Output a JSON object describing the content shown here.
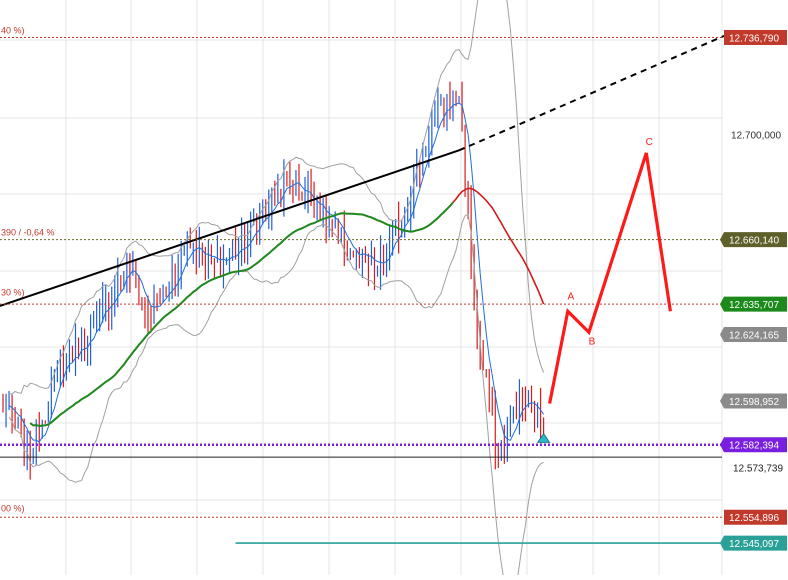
{
  "chart_data": {
    "type": "line",
    "title": "",
    "xlabel": "",
    "ylabel": "",
    "ylim": [
      12.533,
      12.751
    ],
    "grid": true,
    "colors": {
      "price_up": "#1f5fd8",
      "price_down": "#d81c1c",
      "bollinger": "#a0a0a0",
      "ma_fast": "#1e6fe0",
      "ma_mid": "#1f8a1f",
      "ma_slow": "#d31a1a",
      "trendline": "#000000",
      "projection": "#ff1a1a",
      "fib_line": "#c0392b",
      "purple_line": "#7a1fe0",
      "teal_line": "#2aa198"
    },
    "axis_ticks": [
      {
        "label": "12.700,000",
        "value": 12.7
      }
    ],
    "price_badges": [
      {
        "label": "12.736,790",
        "value": 12.73679,
        "style": "outline",
        "color": "#c0392b"
      },
      {
        "label": "12.660,140",
        "value": 12.66014,
        "style": "filled",
        "color": "#5f5f2a"
      },
      {
        "label": "12.635,707",
        "value": 12.635707,
        "style": "filled",
        "color": "#1b8a1b"
      },
      {
        "label": "12.624,165",
        "value": 12.624165,
        "style": "filled",
        "color": "#8a8a8a"
      },
      {
        "label": "12.598,952",
        "value": 12.598952,
        "style": "filled",
        "color": "#8a8a8a"
      },
      {
        "label": "12.582,394",
        "value": 12.582394,
        "style": "filled",
        "color": "#7a1fe0"
      },
      {
        "label": "12.573,739",
        "value": 12.573739,
        "style": "plain",
        "color": "#222222"
      },
      {
        "label": "12.554,896",
        "value": 12.554896,
        "style": "outline",
        "color": "#c0392b"
      },
      {
        "label": "12.545,097",
        "value": 12.545097,
        "style": "filled",
        "color": "#2aa198"
      }
    ],
    "fib_labels": [
      {
        "label": "40 %)",
        "value": 12.73679
      },
      {
        "label": "390 / -0,64 %",
        "value": 12.66014
      },
      {
        "label": "30 %)",
        "value": 12.6375
      },
      {
        "label": "00 %)",
        "value": 12.5555
      }
    ],
    "horizontal_levels": [
      {
        "value": 12.73679,
        "style": "dotted",
        "color": "#c0392b"
      },
      {
        "value": 12.66014,
        "style": "dotted",
        "color": "#6b6b2a"
      },
      {
        "value": 12.635707,
        "style": "dotted",
        "color": "#c0392b"
      },
      {
        "value": 12.582394,
        "style": "dotted-thick",
        "color": "#7a1fe0"
      },
      {
        "value": 12.5777,
        "style": "solid",
        "color": "#222222"
      },
      {
        "value": 12.554896,
        "style": "dotted",
        "color": "#c0392b"
      },
      {
        "value": 12.545097,
        "style": "solid",
        "color": "#2aa198",
        "from_bar": 78
      }
    ],
    "bars_count": 180,
    "price_anchors": [
      [
        0,
        12.599
      ],
      [
        10,
        12.58
      ],
      [
        20,
        12.612
      ],
      [
        32,
        12.628
      ],
      [
        42,
        12.652
      ],
      [
        48,
        12.632
      ],
      [
        55,
        12.64
      ],
      [
        62,
        12.66
      ],
      [
        72,
        12.65
      ],
      [
        82,
        12.662
      ],
      [
        95,
        12.683
      ],
      [
        105,
        12.674
      ],
      [
        115,
        12.656
      ],
      [
        125,
        12.648
      ],
      [
        133,
        12.668
      ],
      [
        143,
        12.704
      ],
      [
        152,
        12.716
      ],
      [
        158,
        12.623
      ],
      [
        165,
        12.578
      ],
      [
        172,
        12.6
      ],
      [
        180,
        12.591
      ]
    ],
    "trendline": {
      "solid": [
        [
          0,
          12.635
        ],
        [
          152,
          12.694
        ]
      ],
      "dashed": [
        [
          152,
          12.694
        ],
        [
          240,
          12.7375
        ]
      ]
    },
    "projection": [
      [
        182,
        12.598
      ],
      [
        188,
        12.633
      ],
      [
        195,
        12.625
      ],
      [
        214,
        12.693
      ],
      [
        222,
        12.633
      ]
    ],
    "wave_labels": [
      {
        "label": "A",
        "bar": 189,
        "value": 12.6375
      },
      {
        "label": "B",
        "bar": 196,
        "value": 12.6204
      },
      {
        "label": "C",
        "bar": 215,
        "value": 12.696
      }
    ],
    "signal_marker": {
      "bar": 180,
      "value": 12.5855,
      "color": "#2ab5c8"
    }
  }
}
